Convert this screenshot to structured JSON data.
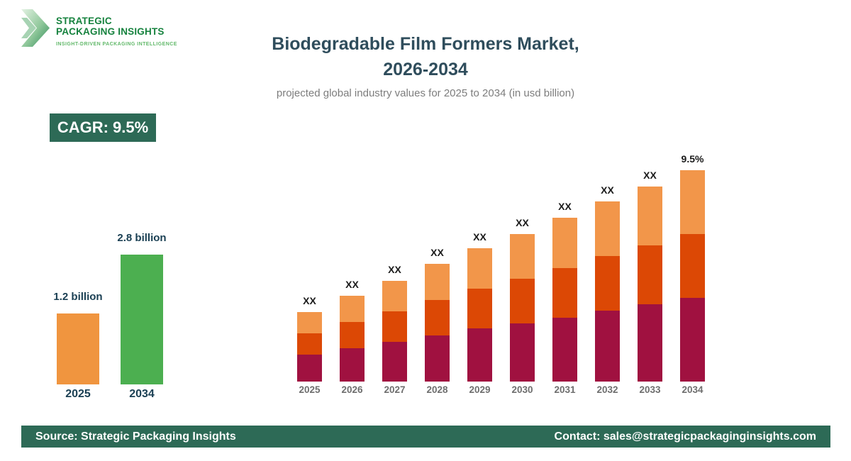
{
  "logo": {
    "line1": "STRATEGIC",
    "line2": "PACKAGING INSIGHTS",
    "tagline": "INSIGHT-DRIVEN PACKAGING INTELLIGENCE"
  },
  "header": {
    "title_line1": "Biodegradable Film Formers Market,",
    "title_line2": "2026-2034",
    "subtitle": "projected global industry values for 2025 to 2034 (in usd billion)"
  },
  "cagr_badge": {
    "label": "CAGR: 9.5%"
  },
  "colors": {
    "badge_bg": "#2D6A56",
    "footer_bg": "#2D6A56",
    "title_text": "#2F4D5C",
    "logo_green": "#16823E",
    "tagline_green": "#63B96B",
    "teal_label": "#1B4054"
  },
  "chart_data": [
    {
      "id": "growth-summary",
      "type": "bar",
      "title": "",
      "unit": "usd billion",
      "categories": [
        "2025",
        "2034"
      ],
      "values": [
        1.2,
        2.8
      ],
      "value_labels": [
        "1.2 billion",
        "2.8 billion"
      ],
      "bar_colors": [
        "#F0953F",
        "#4CAF50"
      ],
      "grid": false,
      "legend": false
    },
    {
      "id": "stacked-forecast",
      "type": "bar",
      "stacked": true,
      "title": "",
      "unit": "relative-height (printed values hidden as XX)",
      "categories": [
        "2025",
        "2026",
        "2027",
        "2028",
        "2029",
        "2030",
        "2031",
        "2032",
        "2033",
        "2034"
      ],
      "series": [
        {
          "name": "segment-bottom",
          "color": "#A01140",
          "values": [
            38,
            47,
            56,
            65,
            75,
            82,
            90,
            100,
            109,
            118
          ]
        },
        {
          "name": "segment-middle",
          "color": "#DC4805",
          "values": [
            30,
            37,
            43,
            50,
            56,
            63,
            70,
            77,
            83,
            90
          ]
        },
        {
          "name": "segment-top",
          "color": "#F2964A",
          "values": [
            30,
            37,
            43,
            51,
            57,
            63,
            71,
            77,
            83,
            90
          ]
        }
      ],
      "bar_labels": [
        "XX",
        "XX",
        "XX",
        "XX",
        "XX",
        "XX",
        "XX",
        "XX",
        "XX",
        "9.5%"
      ],
      "grid": false,
      "legend": false
    }
  ],
  "footer": {
    "source": "Source: Strategic Packaging Insights",
    "contact": "Contact: sales@strategicpackaginginsights.com"
  }
}
